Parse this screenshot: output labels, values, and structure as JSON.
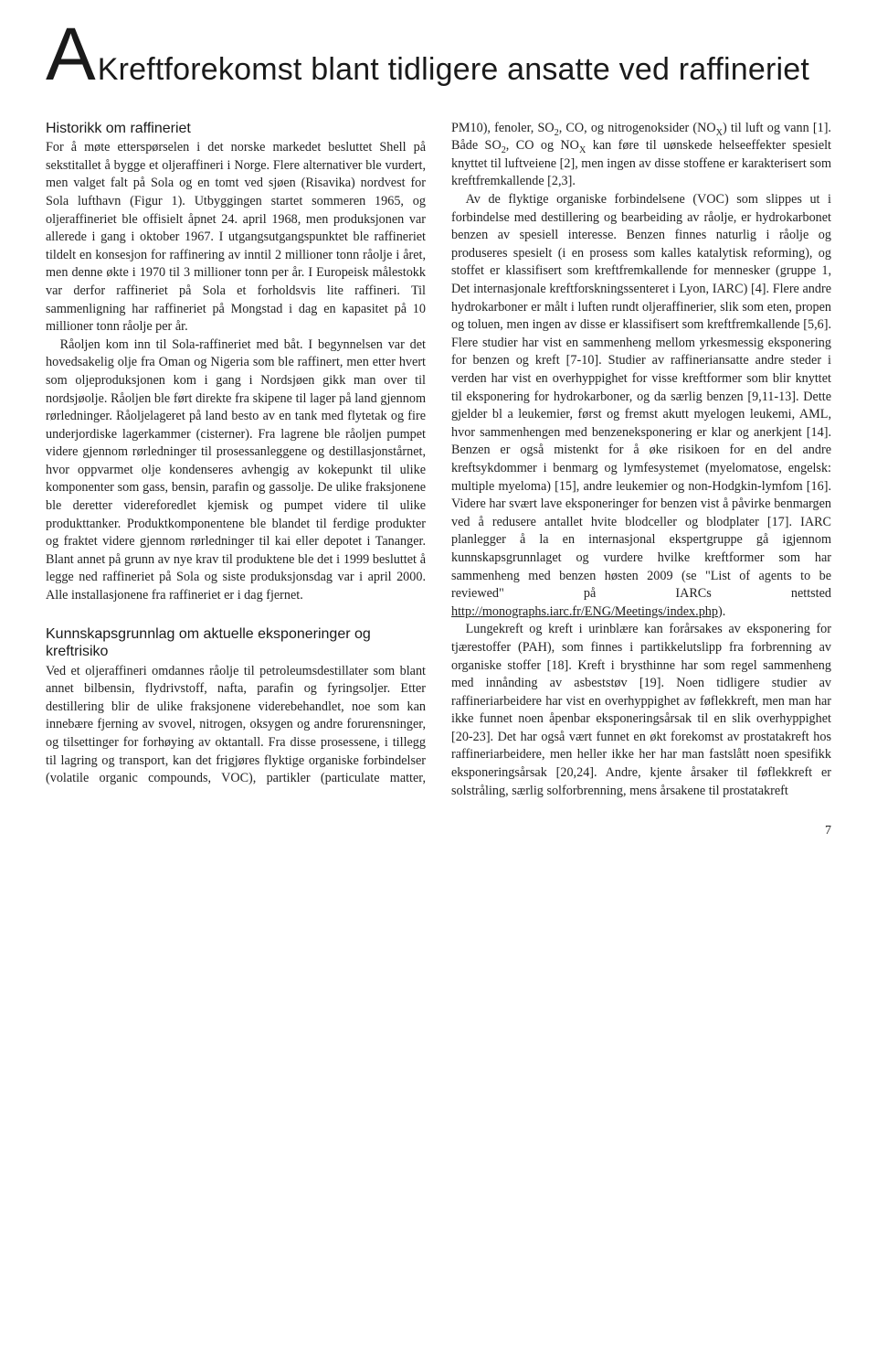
{
  "title_drop": "A",
  "title_rest": "Kreftforekomst blant tidligere ansatte ved raffineriet",
  "page_number": "7",
  "link_url": "http://monographs.iarc.fr/ENG/Meetings/index.php",
  "sections": [
    {
      "title": "Historikk om raffineriet",
      "paragraphs": [
        "For å møte etterspørselen i det norske markedet besluttet Shell på sekstitallet å bygge et oljeraffineri i Norge. Flere alternativer ble vurdert, men valget falt på Sola og en tomt ved sjøen (Risavika) nordvest for Sola lufthavn (Figur 1). Utbyggingen startet sommeren 1965, og oljeraffineriet ble offisielt åpnet 24. april 1968, men produksjonen var allerede i gang i oktober 1967. I utgangsutgangspunktet ble raffineriet tildelt en konsesjon for raffinering av inntil 2 millioner tonn råolje i året, men denne økte i 1970 til 3 millioner tonn per år. I Europeisk målestokk var derfor raffineriet på Sola et forholdsvis lite raffineri. Til sammenligning har raffineriet på Mongstad i dag en kapasitet på 10 millioner tonn råolje per år.",
        "Råoljen kom inn til Sola-raffineriet med båt. I begynnelsen var det hovedsakelig olje fra Oman og Nigeria som ble raffinert, men etter hvert som oljeproduksjonen kom i gang i Nordsjøen gikk man over til nordsjøolje. Råoljen ble ført direkte fra skipene til lager på land gjennom rørledninger. Råoljelageret på land besto av en tank med flytetak og fire underjordiske lagerkammer (cisterner). Fra lagrene ble råoljen pumpet videre gjennom rørledninger til prosessanleggene og destillasjonstårnet, hvor oppvarmet olje kondenseres avhengig av kokepunkt til ulike komponenter som gass, bensin, parafin og gassolje. De ulike fraksjonene ble deretter videreforedlet kjemisk og pumpet videre til ulike produkttanker. Produktkomponentene ble blandet til ferdige produkter og fraktet videre gjennom rørledninger til kai eller depotet i Tananger. Blant annet på grunn av nye krav til produktene ble det i 1999 besluttet å legge ned raffineriet på Sola og siste produksjonsdag var i april 2000. Alle installasjonene fra raffineriet er i dag fjernet."
      ]
    },
    {
      "title": "Kunnskapsgrunnlag om aktuelle eksponeringer og kreftrisiko",
      "paragraphs_html": [
        "Ved et oljeraffineri omdannes råolje til petroleumsdestillater som blant annet bilbensin, flydrivstoff, nafta, parafin og fyringsoljer. Etter destillering blir de ulike fraksjonene viderebehandlet, noe som kan innebære fjerning av svovel, nitrogen, oksygen og andre forurensninger, og tilsettinger for forhøying av oktantall. Fra disse prosessene, i tillegg til lagring og transport, kan det frigjøres flyktige organiske forbindelser (volatile organic compounds, VOC), partikler (particulate matter, PM10), fenoler, SO<sub>2</sub>, CO, og nitrogenoksider (NO<sub>X</sub>) til luft og vann [1]. Både SO<sub>2</sub>, CO og NO<sub>X</sub> kan føre til uønskede helseeffekter spesielt knyttet til luftveiene [2], men ingen av disse stoffene er karakterisert som kreftfremkallende [2,3].",
        "Av de flyktige organiske forbindelsene (VOC) som slippes ut i forbindelse med destillering og bearbeiding av råolje, er hydrokarbonet benzen av spesiell interesse. Benzen finnes naturlig i råolje og produseres spesielt (i en prosess som kalles katalytisk reforming), og stoffet er klassifisert som kreftfremkallende for mennesker (gruppe 1, Det internasjonale kreftforskningssenteret i Lyon, IARC) [4]. Flere andre hydrokarboner er målt i luften rundt oljeraffinerier, slik som eten, propen og toluen, men ingen av disse er klassifisert som kreftfremkallende [5,6]. Flere studier har vist en sammenheng mellom yrkesmessig eksponering for benzen og kreft [7-10]. Studier av raffineriansatte andre steder i verden har vist en overhyppighet for visse kreftformer som blir knyttet til eksponering for hydrokarboner, og da særlig benzen [9,11-13]. Dette gjelder bl a leukemier, først og fremst akutt myelogen leukemi, AML, hvor sammenhengen med benzeneksponering er klar og anerkjent [14]. Benzen er også mistenkt for å øke risikoen for en del andre kreftsykdommer i benmarg og lymfesystemet (myelomatose, engelsk: multiple myeloma) [15], andre leukemier og non-Hodgkin-lymfom [16]. Videre har svært lave eksponeringer for benzen vist å påvirke benmargen ved å redusere antallet hvite blodceller og blodplater [17]. IARC planlegger å la en internasjonal ekspertgruppe gå igjennom kunnskapsgrunnlaget og vurdere hvilke kreftformer som har sammenheng med benzen høsten 2009 (se \"List of agents to be reviewed\" på IARCs nettsted <span class=\"underline\">http://monographs.iarc.fr/ENG/Meetings/index.php</span>).",
        "Lungekreft og kreft i urinblære kan forårsakes av eksponering for tjærestoffer (PAH), som finnes i partikkelutslipp fra forbrenning av organiske stoffer [18]. Kreft i brysthinne har som regel sammenheng med innånding av asbeststøv [19]. Noen tidligere studier av raffineriarbeidere har vist en overhyppighet av føflekkreft, men man har ikke funnet noen åpenbar eksponeringsårsak til en slik overhyppighet [20-23]. Det har også vært funnet en økt forekomst av prostatakreft hos raffineriarbeidere, men heller ikke her har man fastslått noen spesifikk eksponeringsårsak [20,24]. Andre, kjente årsaker til føflekkreft er solstråling, særlig solforbrenning, mens årsakene til prostatakreft"
      ]
    }
  ]
}
